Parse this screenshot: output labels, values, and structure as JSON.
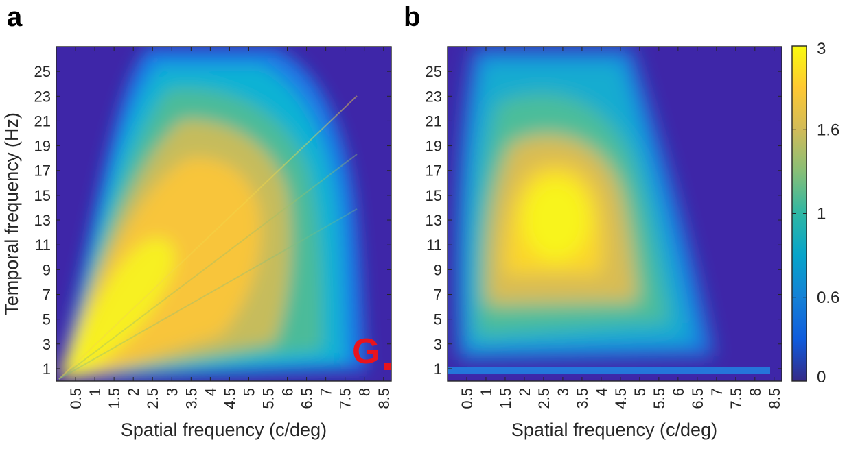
{
  "watermark": {
    "text": "G",
    "color": "#e8141e"
  },
  "colormap": {
    "name": "parula",
    "stops": [
      "#352a87",
      "#0f5cdd",
      "#1481d6",
      "#06a4ca",
      "#2eb7a4",
      "#87bf77",
      "#d1bb59",
      "#fec832",
      "#f9fb0e"
    ]
  },
  "colorbar": {
    "ticks": [
      {
        "label": "3",
        "level": 1.0
      },
      {
        "label": "1.6",
        "level": 0.75
      },
      {
        "label": "1",
        "level": 0.5
      },
      {
        "label": "0.6",
        "level": 0.25
      },
      {
        "label": "0",
        "level": 0.0
      }
    ]
  },
  "chart_data": [
    {
      "panel": "a",
      "type": "heatmap",
      "title": "",
      "xlabel": "Spatial frequency (c/deg)",
      "ylabel": "Temporal frequency (Hz)",
      "xlim": [
        0.0,
        8.7
      ],
      "ylim": [
        0.0,
        27.0
      ],
      "xticks": [
        "0.5",
        "1",
        "1.5",
        "2",
        "2.5",
        "3",
        "3.5",
        "4",
        "4.5",
        "5",
        "5.5",
        "6",
        "6.5",
        "7",
        "7.5",
        "8",
        "8.5"
      ],
      "yticks": [
        "1",
        "3",
        "5",
        "7",
        "9",
        "11",
        "13",
        "15",
        "17",
        "19",
        "21",
        "23",
        "25"
      ],
      "color_range": [
        0,
        3
      ],
      "peak": {
        "spatial_cdeg": 2.3,
        "temporal_hz": 8,
        "value": 3
      },
      "description_points": [
        {
          "x": 0.8,
          "y": 2,
          "value": 3.0
        },
        {
          "x": 2.5,
          "y": 10,
          "value": 2.6
        },
        {
          "x": 4.0,
          "y": 14,
          "value": 2.0
        },
        {
          "x": 5.5,
          "y": 20,
          "value": 1.0
        },
        {
          "x": 7.0,
          "y": 6,
          "value": 0.7
        },
        {
          "x": 8.5,
          "y": 2,
          "value": 0.0
        }
      ]
    },
    {
      "panel": "b",
      "type": "heatmap",
      "title": "",
      "xlabel": "Spatial frequency (c/deg)",
      "ylabel": "",
      "xlim": [
        0.0,
        8.7
      ],
      "ylim": [
        0.0,
        27.0
      ],
      "xticks": [
        "0.5",
        "1",
        "1.5",
        "2",
        "2.5",
        "3",
        "3.5",
        "4",
        "4.5",
        "5",
        "5.5",
        "6",
        "6.5",
        "7",
        "7.5",
        "8",
        "8.5"
      ],
      "yticks": [
        "1",
        "3",
        "5",
        "7",
        "9",
        "11",
        "13",
        "15",
        "17",
        "19",
        "21",
        "23",
        "25"
      ],
      "color_range": [
        0,
        3
      ],
      "peak": {
        "spatial_cdeg": 2.9,
        "temporal_hz": 13,
        "value": 3
      },
      "description_points": [
        {
          "x": 2.9,
          "y": 13,
          "value": 3.0
        },
        {
          "x": 1.2,
          "y": 13,
          "value": 1.2
        },
        {
          "x": 5.0,
          "y": 8,
          "value": 1.0
        },
        {
          "x": 3.0,
          "y": 25,
          "value": 0.6
        },
        {
          "x": 7.5,
          "y": 0.5,
          "value": 0.5
        },
        {
          "x": 8.0,
          "y": 20,
          "value": 0.0
        }
      ]
    }
  ],
  "panels": [
    {
      "letter": "a"
    },
    {
      "letter": "b"
    }
  ]
}
